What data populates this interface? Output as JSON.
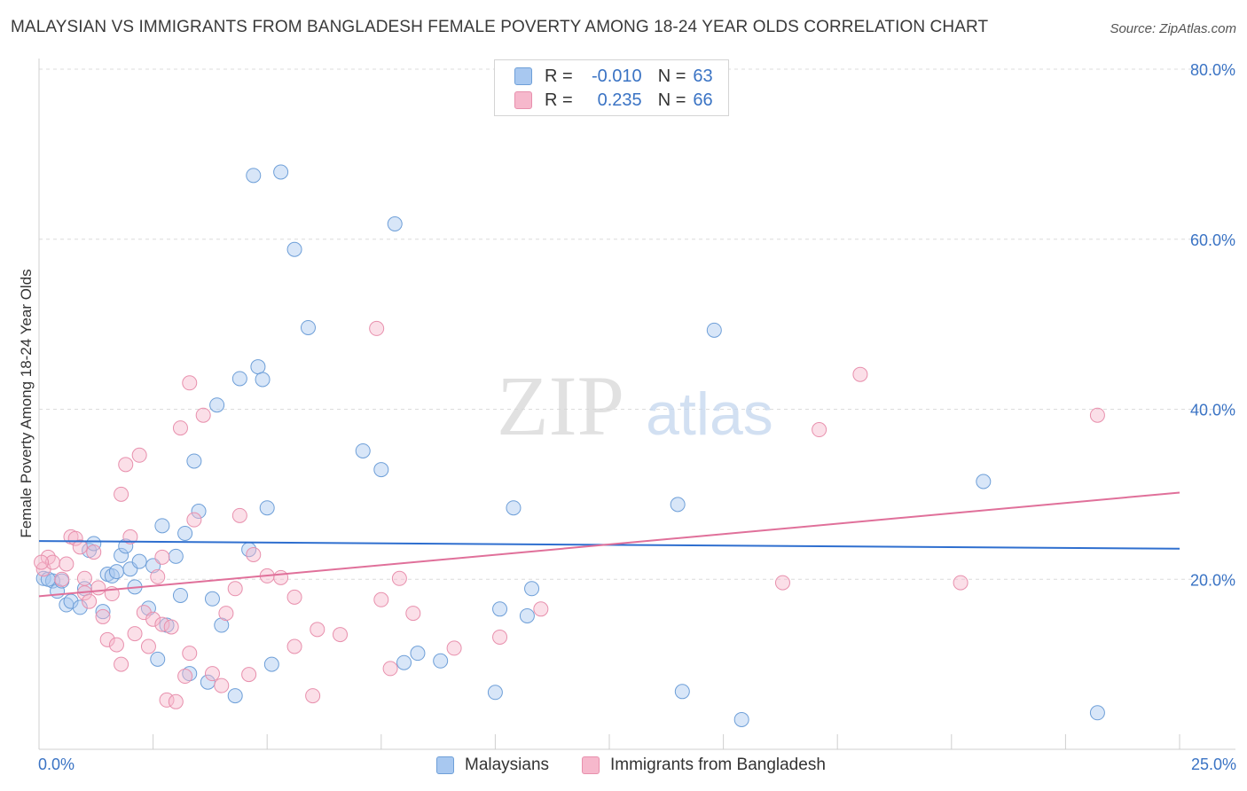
{
  "title": "MALAYSIAN VS IMMIGRANTS FROM BANGLADESH FEMALE POVERTY AMONG 18-24 YEAR OLDS CORRELATION CHART",
  "source": "Source: ZipAtlas.com",
  "watermark": {
    "zip": "ZIP",
    "atlas": "atlas"
  },
  "legend": {
    "rows": [
      {
        "r_label": "R =",
        "r_value": "-0.010",
        "n_label": "N =",
        "n_value": "63"
      },
      {
        "r_label": "R =",
        "r_value": "0.235",
        "n_label": "N =",
        "n_value": "66"
      }
    ]
  },
  "bottom_legend": {
    "malaysians": "Malaysians",
    "bangladesh": "Immigrants from Bangladesh"
  },
  "colors": {
    "blue_fill": "#a8c8f0",
    "blue_stroke": "#6e9fd8",
    "blue_line": "#2f6fcf",
    "pink_fill": "#f6b8cc",
    "pink_stroke": "#e890ad",
    "pink_line": "#e0709a",
    "tick_label": "#3a73c4",
    "grid": "#dcdcdc"
  },
  "chart_data": {
    "type": "scatter",
    "title": "MALAYSIAN VS IMMIGRANTS FROM BANGLADESH FEMALE POVERTY AMONG 18-24 YEAR OLDS CORRELATION CHART",
    "xlabel": "",
    "ylabel": "Female Poverty Among 18-24 Year Olds",
    "xlim": [
      0,
      25
    ],
    "ylim": [
      0,
      80
    ],
    "x_tick_labels": [
      "0.0%",
      "25.0%"
    ],
    "y_ticks": [
      20,
      40,
      60,
      80
    ],
    "y_tick_labels": [
      "20.0%",
      "40.0%",
      "60.0%",
      "80.0%"
    ],
    "grid": true,
    "legend_position": "top-center",
    "series": [
      {
        "name": "Malaysians",
        "r": -0.01,
        "n": 63,
        "trend": [
          [
            0,
            24.5
          ],
          [
            25,
            23.6
          ]
        ],
        "points": [
          [
            0.1,
            20.1
          ],
          [
            0.3,
            19.8
          ],
          [
            0.4,
            18.6
          ],
          [
            0.5,
            19.8
          ],
          [
            0.6,
            17.0
          ],
          [
            0.7,
            17.4
          ],
          [
            0.9,
            16.7
          ],
          [
            1.0,
            18.9
          ],
          [
            1.1,
            23.4
          ],
          [
            1.2,
            24.2
          ],
          [
            1.4,
            16.2
          ],
          [
            1.5,
            20.6
          ],
          [
            1.6,
            20.4
          ],
          [
            1.7,
            20.9
          ],
          [
            1.8,
            22.8
          ],
          [
            1.9,
            23.9
          ],
          [
            2.0,
            21.2
          ],
          [
            2.1,
            19.1
          ],
          [
            2.2,
            22.1
          ],
          [
            2.4,
            16.6
          ],
          [
            2.5,
            21.6
          ],
          [
            2.6,
            10.6
          ],
          [
            2.7,
            26.3
          ],
          [
            2.8,
            14.6
          ],
          [
            3.0,
            22.7
          ],
          [
            3.1,
            18.1
          ],
          [
            3.2,
            25.4
          ],
          [
            3.3,
            8.9
          ],
          [
            3.4,
            33.9
          ],
          [
            3.5,
            28.0
          ],
          [
            3.7,
            7.9
          ],
          [
            3.8,
            17.7
          ],
          [
            3.9,
            40.5
          ],
          [
            4.0,
            14.6
          ],
          [
            4.3,
            6.3
          ],
          [
            4.4,
            43.6
          ],
          [
            4.6,
            23.5
          ],
          [
            4.7,
            67.5
          ],
          [
            4.8,
            45.0
          ],
          [
            4.9,
            43.5
          ],
          [
            5.0,
            28.4
          ],
          [
            5.1,
            10.0
          ],
          [
            5.3,
            67.9
          ],
          [
            5.6,
            58.8
          ],
          [
            5.9,
            49.6
          ],
          [
            7.1,
            35.1
          ],
          [
            7.5,
            32.9
          ],
          [
            7.8,
            61.8
          ],
          [
            8.0,
            10.2
          ],
          [
            8.3,
            11.3
          ],
          [
            8.8,
            10.4
          ],
          [
            10.0,
            6.7
          ],
          [
            10.1,
            16.5
          ],
          [
            10.4,
            28.4
          ],
          [
            10.7,
            15.7
          ],
          [
            10.8,
            18.9
          ],
          [
            14.0,
            28.8
          ],
          [
            14.1,
            6.8
          ],
          [
            14.8,
            49.3
          ],
          [
            15.4,
            3.5
          ],
          [
            20.7,
            31.5
          ],
          [
            23.2,
            4.3
          ],
          [
            0.2,
            20.0
          ]
        ]
      },
      {
        "name": "Immigrants from Bangladesh",
        "r": 0.235,
        "n": 66,
        "trend": [
          [
            0,
            18.0
          ],
          [
            25,
            30.2
          ]
        ],
        "points": [
          [
            0.1,
            21.2
          ],
          [
            0.2,
            22.6
          ],
          [
            0.3,
            22.0
          ],
          [
            0.5,
            20.0
          ],
          [
            0.6,
            21.8
          ],
          [
            0.7,
            25.0
          ],
          [
            0.8,
            24.8
          ],
          [
            0.9,
            23.8
          ],
          [
            1.0,
            20.1
          ],
          [
            1.0,
            18.4
          ],
          [
            1.1,
            17.4
          ],
          [
            1.2,
            23.2
          ],
          [
            1.3,
            19.0
          ],
          [
            1.4,
            15.6
          ],
          [
            1.5,
            12.9
          ],
          [
            1.6,
            18.3
          ],
          [
            1.7,
            12.3
          ],
          [
            1.8,
            10.0
          ],
          [
            1.8,
            30.0
          ],
          [
            1.9,
            33.5
          ],
          [
            2.0,
            25.0
          ],
          [
            2.1,
            13.6
          ],
          [
            2.2,
            34.6
          ],
          [
            2.3,
            16.1
          ],
          [
            2.4,
            12.1
          ],
          [
            2.5,
            15.3
          ],
          [
            2.6,
            20.3
          ],
          [
            2.7,
            14.7
          ],
          [
            2.7,
            22.6
          ],
          [
            2.8,
            5.8
          ],
          [
            2.9,
            14.4
          ],
          [
            3.0,
            5.6
          ],
          [
            3.1,
            37.8
          ],
          [
            3.2,
            8.6
          ],
          [
            3.3,
            43.1
          ],
          [
            3.3,
            11.3
          ],
          [
            3.4,
            27.0
          ],
          [
            3.6,
            39.3
          ],
          [
            3.8,
            8.9
          ],
          [
            4.0,
            7.5
          ],
          [
            4.1,
            16.0
          ],
          [
            4.3,
            18.9
          ],
          [
            4.4,
            27.5
          ],
          [
            4.6,
            8.8
          ],
          [
            4.7,
            22.9
          ],
          [
            5.0,
            20.4
          ],
          [
            5.3,
            20.2
          ],
          [
            5.6,
            12.1
          ],
          [
            5.6,
            17.9
          ],
          [
            6.0,
            6.3
          ],
          [
            6.1,
            14.1
          ],
          [
            6.6,
            13.5
          ],
          [
            7.4,
            49.5
          ],
          [
            7.5,
            17.6
          ],
          [
            7.7,
            9.5
          ],
          [
            7.9,
            20.1
          ],
          [
            8.2,
            16.0
          ],
          [
            9.1,
            11.9
          ],
          [
            10.1,
            13.2
          ],
          [
            11.0,
            16.5
          ],
          [
            16.3,
            19.6
          ],
          [
            17.1,
            37.6
          ],
          [
            18.0,
            44.1
          ],
          [
            20.2,
            19.6
          ],
          [
            23.2,
            39.3
          ],
          [
            0.05,
            22.0
          ]
        ]
      }
    ]
  }
}
